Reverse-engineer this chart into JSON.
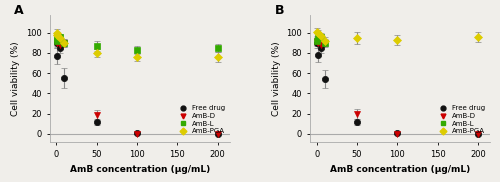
{
  "panel_A": {
    "title": "A",
    "xlabel": "AmB concentration (μg/mL)",
    "ylabel": "Cell viability (%)",
    "free_drug": {
      "x": [
        0.5,
        1,
        5,
        10,
        50,
        100,
        200
      ],
      "y": [
        90,
        77,
        85,
        55,
        12,
        1,
        0
      ],
      "yerr": [
        5,
        8,
        5,
        10,
        3,
        1,
        0.5
      ],
      "color": "#111111",
      "marker": "o"
    },
    "AmB_D": {
      "x": [
        0.5,
        1,
        5,
        10,
        50,
        100,
        200
      ],
      "y": [
        90,
        90,
        88,
        90,
        19,
        0,
        0
      ],
      "yerr": [
        4,
        3,
        4,
        3,
        5,
        0.5,
        0.5
      ],
      "color": "#cc0000",
      "marker": "v"
    },
    "AmB_L": {
      "x": [
        0.5,
        1,
        5,
        10,
        50,
        100,
        200
      ],
      "y": [
        92,
        95,
        96,
        90,
        87,
        83,
        85
      ],
      "yerr": [
        4,
        4,
        3,
        4,
        5,
        4,
        4
      ],
      "color": "#33aa00",
      "marker": "s"
    },
    "AmB_PGA": {
      "x": [
        0.5,
        1,
        5,
        10,
        50,
        100,
        200
      ],
      "y": [
        100,
        98,
        95,
        90,
        80,
        76,
        76
      ],
      "yerr": [
        4,
        3,
        3,
        4,
        4,
        4,
        5
      ],
      "color": "#ddcc00",
      "marker": "D"
    }
  },
  "panel_B": {
    "title": "B",
    "xlabel": "AmB concentration (μg/mL)",
    "ylabel": "Cell viability (%)",
    "free_drug": {
      "x": [
        0.5,
        1,
        5,
        10,
        50,
        100,
        200
      ],
      "y": [
        90,
        78,
        85,
        54,
        12,
        1,
        0
      ],
      "yerr": [
        5,
        7,
        5,
        9,
        3,
        1,
        0.5
      ],
      "color": "#111111",
      "marker": "o"
    },
    "AmB_D": {
      "x": [
        0.5,
        1,
        5,
        10,
        50,
        100,
        200
      ],
      "y": [
        91,
        90,
        88,
        90,
        20,
        0,
        0
      ],
      "yerr": [
        4,
        3,
        4,
        3,
        5,
        0.5,
        0.5
      ],
      "color": "#cc0000",
      "marker": "v"
    },
    "AmB_L": {
      "x": [
        0.5,
        1,
        5,
        10
      ],
      "y": [
        92,
        95,
        96,
        90
      ],
      "yerr": [
        4,
        4,
        3,
        4
      ],
      "color": "#33aa00",
      "marker": "s"
    },
    "AmB_PGA": {
      "x": [
        0.5,
        1,
        5,
        10,
        50,
        100,
        200
      ],
      "y": [
        101,
        100,
        97,
        92,
        95,
        93,
        96
      ],
      "yerr": [
        4,
        3,
        3,
        4,
        6,
        5,
        5
      ],
      "color": "#ddcc00",
      "marker": "D"
    }
  },
  "legend": {
    "free_drug_label": "Free drug",
    "AmB_D_label": "AmB-D",
    "AmB_L_label": "AmB-L",
    "AmB_PGA_label": "AmB-PGA"
  },
  "bg_color": "#f0eeea",
  "xticks": [
    0,
    50,
    100,
    150,
    200
  ],
  "yticks": [
    0,
    20,
    40,
    60,
    80,
    100
  ],
  "xlim": [
    -8,
    215
  ],
  "ylim": [
    -8,
    118
  ],
  "markersize": 4.5,
  "capsize": 2,
  "elinewidth": 0.8,
  "markeredgewidth": 0.5
}
